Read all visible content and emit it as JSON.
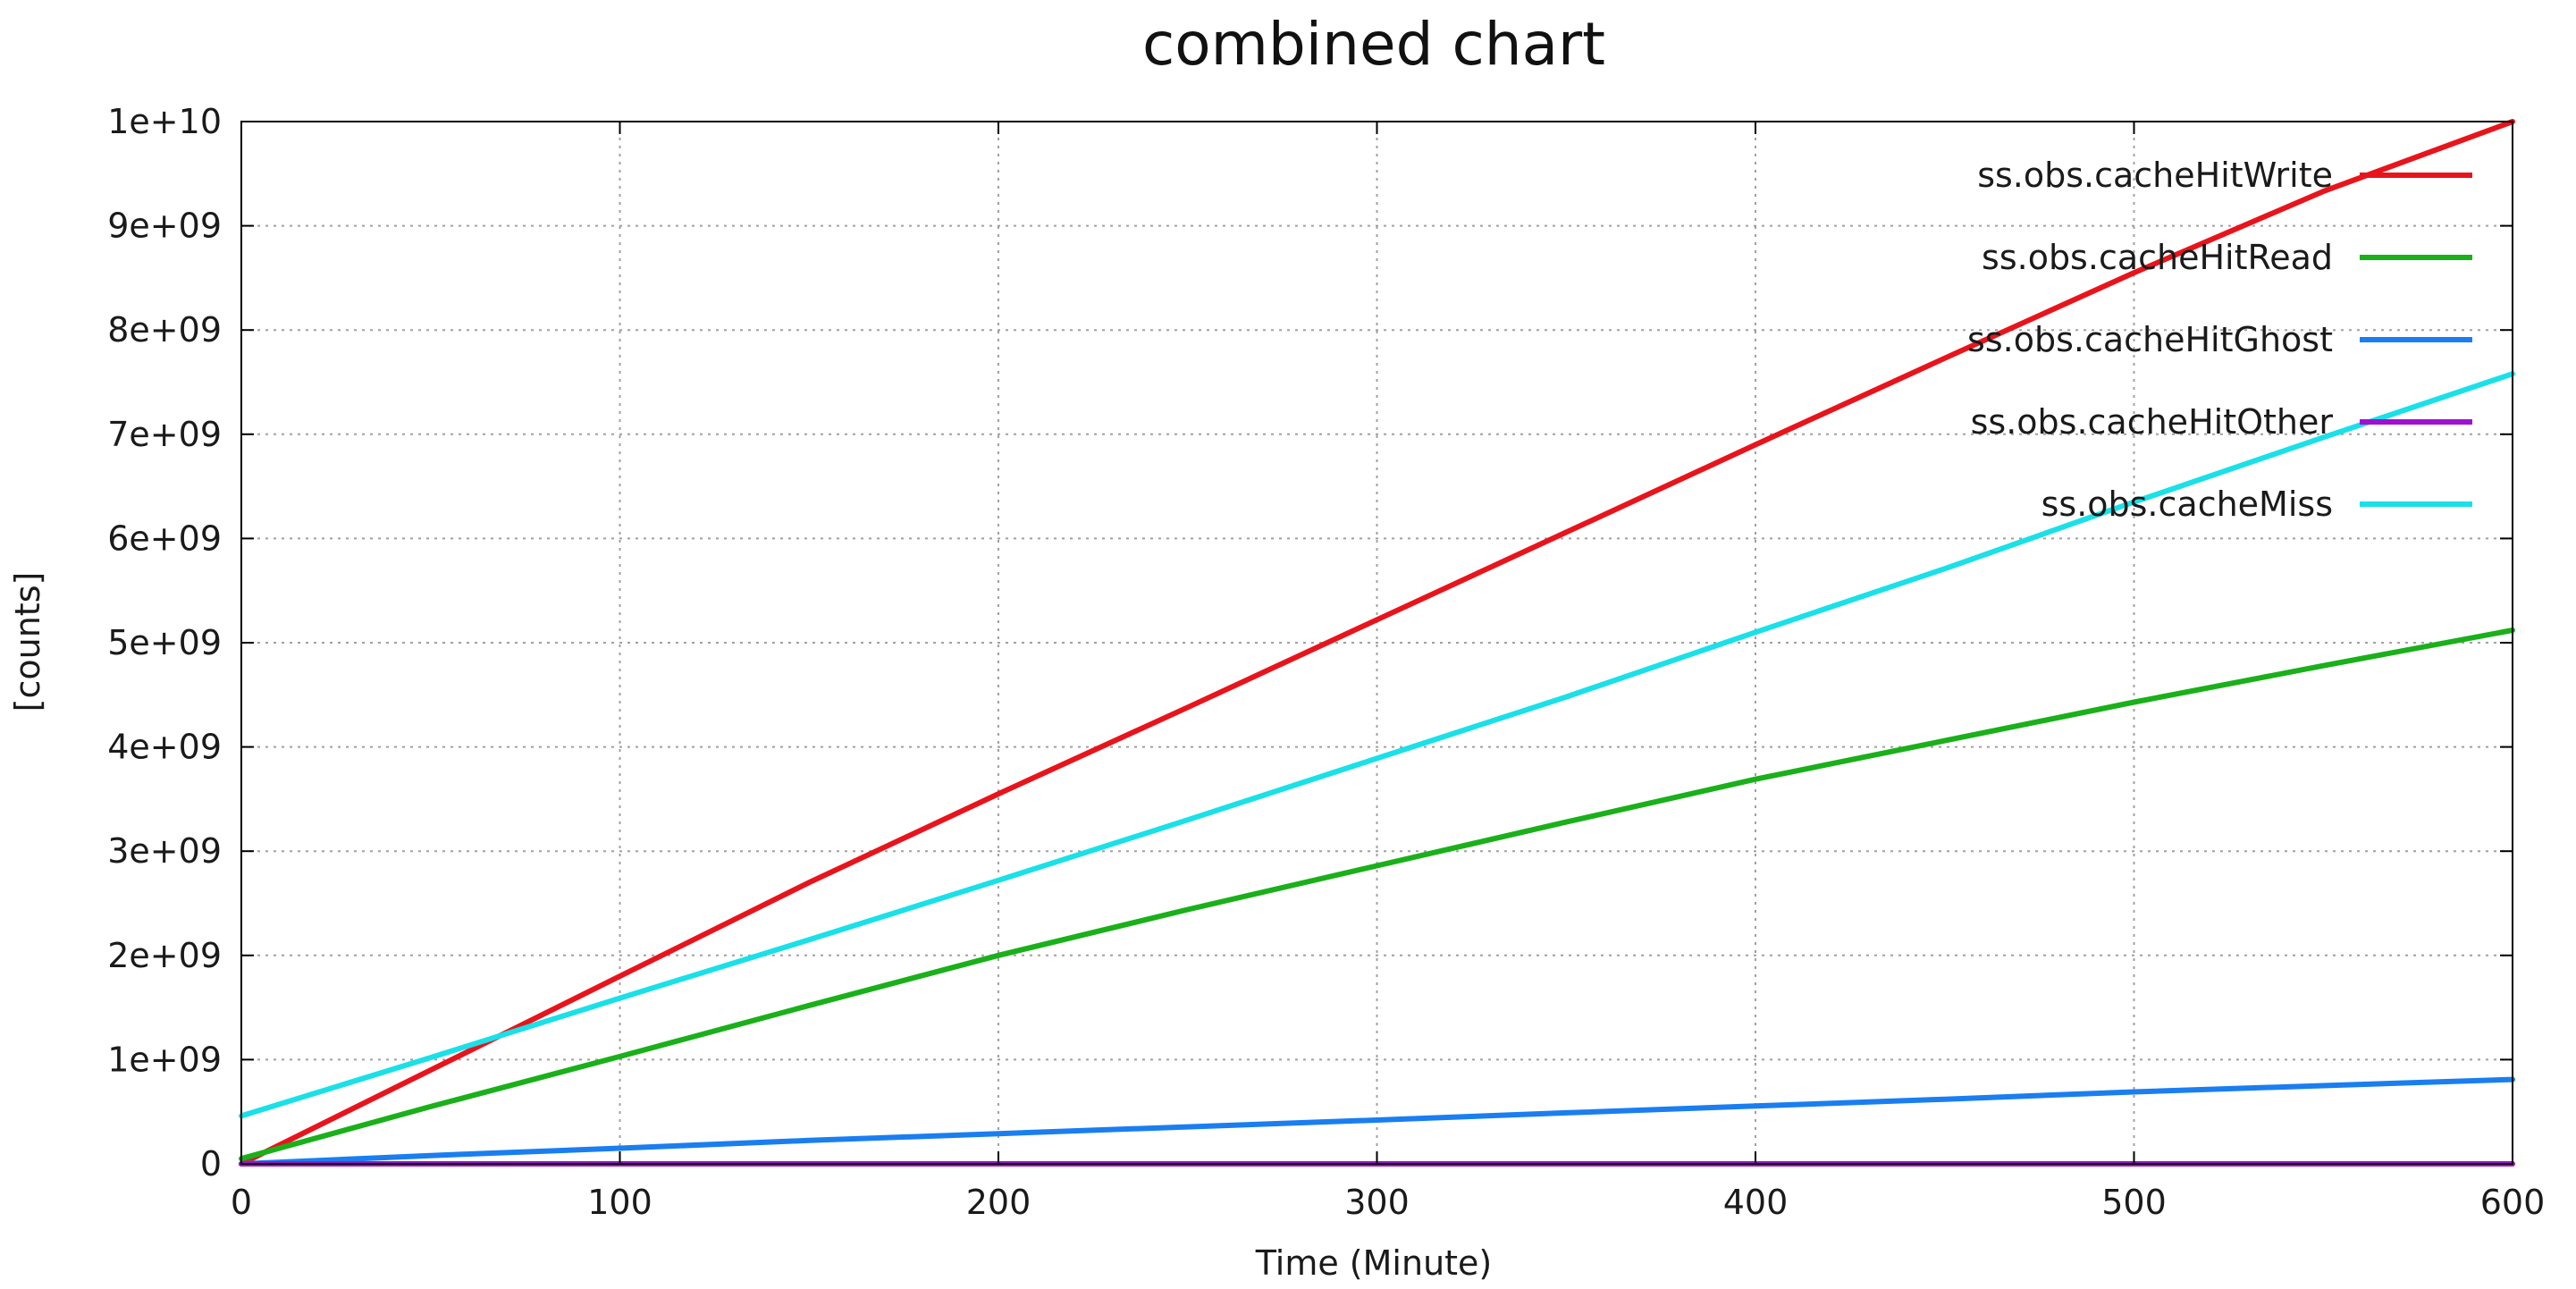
{
  "chart_data": {
    "type": "line",
    "title": "combined chart",
    "xlabel": "Time (Minute)",
    "ylabel": "[counts]",
    "xlim": [
      0,
      600
    ],
    "ylim": [
      0,
      10000000000
    ],
    "x_ticks": [
      0,
      100,
      200,
      300,
      400,
      500,
      600
    ],
    "x_tick_labels": [
      "0",
      "100",
      "200",
      "300",
      "400",
      "500",
      "600"
    ],
    "y_ticks": [
      0,
      1000000000,
      2000000000,
      3000000000,
      4000000000,
      5000000000,
      6000000000,
      7000000000,
      8000000000,
      9000000000,
      10000000000
    ],
    "y_tick_labels": [
      "0",
      "1e+09",
      "2e+09",
      "3e+09",
      "4e+09",
      "5e+09",
      "6e+09",
      "7e+09",
      "8e+09",
      "9e+09",
      "1e+10"
    ],
    "grid": true,
    "legend_position": "top-right",
    "x": [
      0,
      50,
      100,
      150,
      200,
      250,
      300,
      350,
      400,
      450,
      500,
      550,
      600
    ],
    "series": [
      {
        "name": "ss.obs.cacheHitWrite",
        "color": "#e8141c",
        "values": [
          0,
          900000000,
          1800000000,
          2700000000,
          3550000000,
          4380000000,
          5220000000,
          6060000000,
          6900000000,
          7730000000,
          8550000000,
          9330000000,
          10000000000
        ]
      },
      {
        "name": "ss.obs.cacheHitRead",
        "color": "#1ab01a",
        "values": [
          50000000,
          550000000,
          1030000000,
          1520000000,
          2000000000,
          2440000000,
          2860000000,
          3280000000,
          3690000000,
          4060000000,
          4430000000,
          4780000000,
          5120000000
        ]
      },
      {
        "name": "ss.obs.cacheHitGhost",
        "color": "#1a7ef0",
        "values": [
          0,
          80000000,
          150000000,
          225000000,
          290000000,
          355000000,
          420000000,
          490000000,
          555000000,
          620000000,
          690000000,
          750000000,
          810000000
        ]
      },
      {
        "name": "ss.obs.cacheHitOther",
        "color": "#a010d0",
        "values": [
          0,
          0,
          0,
          0,
          0,
          0,
          0,
          0,
          0,
          0,
          0,
          0,
          0
        ]
      },
      {
        "name": "ss.obs.cacheMiss",
        "color": "#1ae0e8",
        "values": [
          460000000,
          1020000000,
          1590000000,
          2150000000,
          2720000000,
          3300000000,
          3890000000,
          4480000000,
          5100000000,
          5710000000,
          6350000000,
          6970000000,
          7580000000
        ]
      }
    ]
  }
}
